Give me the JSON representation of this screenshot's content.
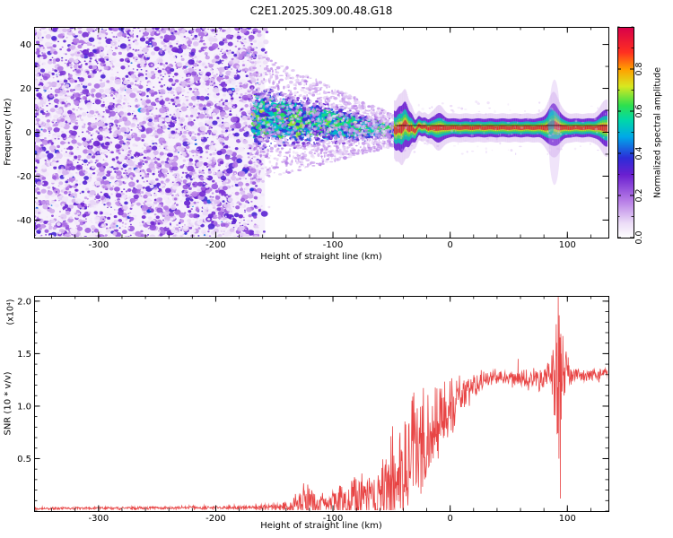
{
  "title": "C2E1.2025.309.00.48.G18",
  "chart_data": [
    {
      "type": "heatmap",
      "name": "radio-occultation-spectrogram",
      "xlabel": "Height of straight line (km)",
      "ylabel": "Frequency (Hz)",
      "xlim": [
        -355,
        135
      ],
      "ylim": [
        -48,
        48
      ],
      "xticks": [
        -300,
        -200,
        -100,
        0,
        100
      ],
      "yticks": [
        -40,
        -20,
        0,
        20,
        40
      ],
      "colorbar": {
        "label": "Normalized spectral amplitude",
        "range": [
          0,
          1
        ],
        "ticks": [
          0,
          0.2,
          0.4,
          0.6,
          0.8
        ],
        "stops": [
          [
            0,
            "#ffffff"
          ],
          [
            0.07,
            "#ecddf7"
          ],
          [
            0.18,
            "#b57ae6"
          ],
          [
            0.3,
            "#6a1fd0"
          ],
          [
            0.38,
            "#2c2cd8"
          ],
          [
            0.48,
            "#00a8e8"
          ],
          [
            0.56,
            "#00d8a8"
          ],
          [
            0.63,
            "#2ee04e"
          ],
          [
            0.72,
            "#d8e820"
          ],
          [
            0.8,
            "#ffa000"
          ],
          [
            0.88,
            "#ff3020"
          ],
          [
            1,
            "#d8004a"
          ]
        ]
      },
      "features": {
        "noise_region": {
          "x_start": -355,
          "x_end": -160,
          "amp_low": 0.04,
          "amp_high": 0.4
        },
        "converging_cloud": {
          "x_start": -168,
          "x_end": -45,
          "center_freq_start": 7,
          "center_freq_end": 0.8,
          "spread_start": 17,
          "spread_end": 3.5
        },
        "carrier_line": {
          "x_start": -48,
          "center_freq": 2,
          "core_amp": 0.95,
          "dark_line_freq": 3.1,
          "layers": [
            [
              6.5,
              0.1
            ],
            [
              4.2,
              0.3
            ],
            [
              2.8,
              0.55
            ],
            [
              1.9,
              0.65
            ],
            [
              1.3,
              0.75
            ],
            [
              0.8,
              0.95
            ]
          ],
          "disturbances": [
            [
              -48,
              1.9,
              80
            ],
            [
              -38,
              1.9,
              40
            ],
            [
              -10,
              1.6,
              25
            ],
            [
              88,
              2.3,
              45
            ],
            [
              133,
              2,
              40
            ]
          ],
          "bump": {
            "x": 88,
            "dfreq": 1.4,
            "sigma2": 20
          },
          "smears": [
            {
              "x": 89,
              "freq": 0,
              "rx_km": 5,
              "ry_hz": 24,
              "amp": 0.13,
              "alpha": 0.3
            },
            {
              "x": 86,
              "freq": 5,
              "rx_km": 3,
              "ry_hz": 6,
              "amp": 0.5,
              "alpha": 0.5
            }
          ]
        }
      }
    },
    {
      "type": "line",
      "name": "snr-profile",
      "xlabel": "Height of straight line (km)",
      "ylabel": "SNR (10 * v/v)",
      "y_scale_label": "(x10⁴)",
      "xlim": [
        -355,
        135
      ],
      "ylim": [
        0,
        2.05
      ],
      "xticks": [
        -300,
        -200,
        -100,
        0,
        100
      ],
      "yticks": [
        0.5,
        1,
        1.5,
        2
      ],
      "line_color": "#e84545",
      "envelope": [
        [
          -357,
          0.025,
          0.01
        ],
        [
          -250,
          0.03,
          0.012
        ],
        [
          -170,
          0.035,
          0.015
        ],
        [
          -148,
          0.04,
          0.03
        ],
        [
          -135,
          0.05,
          0.05
        ],
        [
          -122,
          0.09,
          0.14
        ],
        [
          -112,
          0.07,
          0.08
        ],
        [
          -103,
          0.06,
          0.05
        ],
        [
          -95,
          0.1,
          0.16
        ],
        [
          -88,
          0.09,
          0.1
        ],
        [
          -80,
          0.13,
          0.22
        ],
        [
          -72,
          0.12,
          0.12
        ],
        [
          -65,
          0.18,
          0.25
        ],
        [
          -58,
          0.22,
          0.28
        ],
        [
          -50,
          0.28,
          0.35
        ],
        [
          -43,
          0.35,
          0.4
        ],
        [
          -36,
          0.5,
          0.45
        ],
        [
          -30,
          0.55,
          0.5
        ],
        [
          -24,
          0.6,
          0.45
        ],
        [
          -18,
          0.75,
          0.4
        ],
        [
          -12,
          0.85,
          0.35
        ],
        [
          -6,
          0.95,
          0.3
        ],
        [
          0,
          1,
          0.28
        ],
        [
          8,
          1.08,
          0.22
        ],
        [
          16,
          1.15,
          0.15
        ],
        [
          24,
          1.22,
          0.1
        ],
        [
          32,
          1.26,
          0.07
        ],
        [
          42,
          1.28,
          0.06
        ],
        [
          55,
          1.26,
          0.06
        ],
        [
          68,
          1.25,
          0.07
        ],
        [
          78,
          1.27,
          0.09
        ],
        [
          85,
          1.3,
          0.15
        ],
        [
          90,
          1.25,
          0.45
        ],
        [
          93,
          1.2,
          0.7
        ],
        [
          96,
          1.32,
          0.25
        ],
        [
          102,
          1.3,
          0.08
        ],
        [
          115,
          1.29,
          0.05
        ],
        [
          135,
          1.31,
          0.05
        ]
      ],
      "spikes": [
        [
          -31,
          1.13
        ],
        [
          58,
          1.45
        ],
        [
          90.5,
          1.78
        ],
        [
          91.5,
          0.9
        ],
        [
          92.2,
          2.04
        ],
        [
          92.8,
          0.5
        ],
        [
          93.4,
          1.55
        ],
        [
          94,
          0.12
        ],
        [
          94.8,
          1.5
        ]
      ]
    }
  ]
}
